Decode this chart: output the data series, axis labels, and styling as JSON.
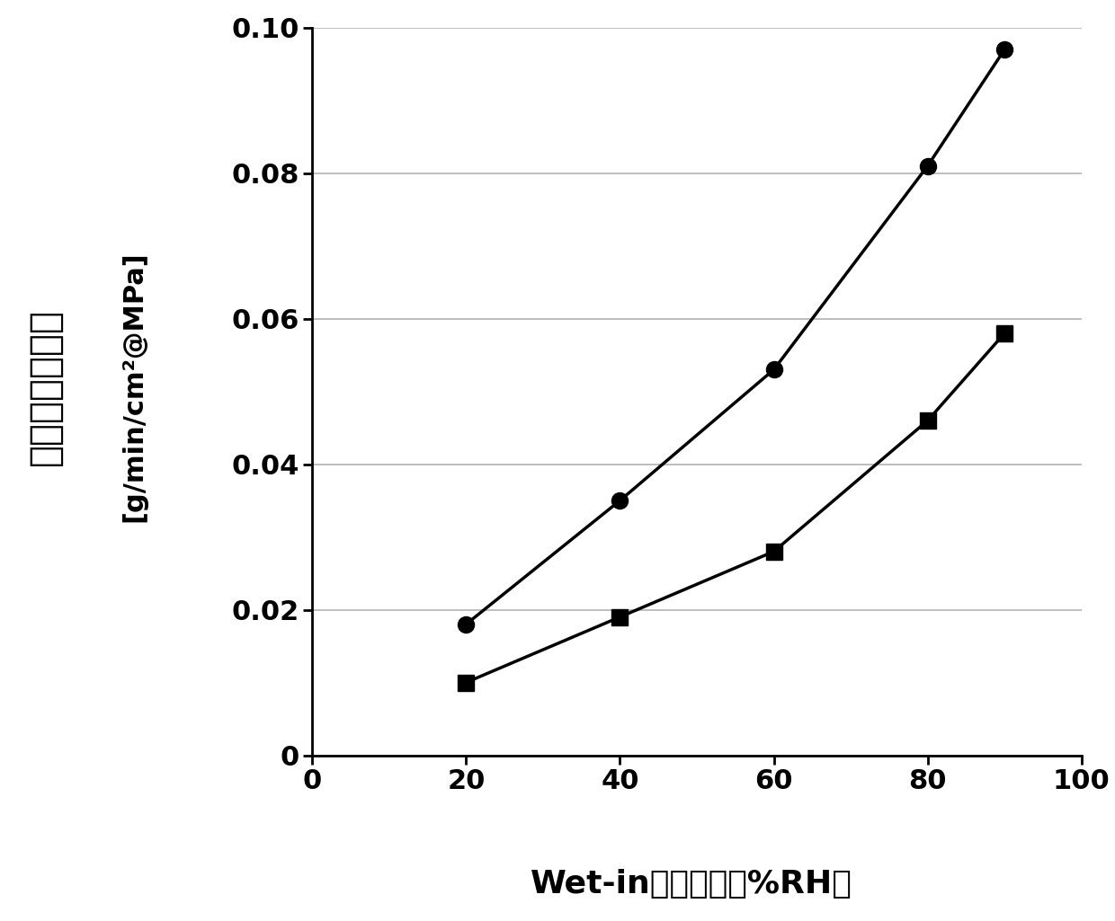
{
  "series1_x": [
    20,
    40,
    60,
    80,
    90
  ],
  "series1_y": [
    0.018,
    0.035,
    0.053,
    0.081,
    0.097
  ],
  "series2_x": [
    20,
    40,
    60,
    80,
    90
  ],
  "series2_y": [
    0.01,
    0.019,
    0.028,
    0.046,
    0.058
  ],
  "series1_marker": "o",
  "series2_marker": "s",
  "marker_size": 13,
  "line_color": "#000000",
  "line_width": 2.5,
  "xlim": [
    0,
    100
  ],
  "ylim": [
    0,
    0.1
  ],
  "xticks": [
    0,
    20,
    40,
    60,
    80,
    100
  ],
  "yticks": [
    0,
    0.02,
    0.04,
    0.06,
    0.08,
    0.1
  ],
  "xlabel_ascii": "Wet-in",
  "xlabel_cjk": "相対湿度（%RH）",
  "ylabel_cjk_line1": "水蒸気透過係数",
  "ylabel_ascii": "[g/min/cm²@MPa]",
  "background_color": "#ffffff",
  "grid_color": "#aaaaaa",
  "tick_fontsize": 22,
  "label_fontsize": 26,
  "ylabel_cjk_fontsize": 30
}
